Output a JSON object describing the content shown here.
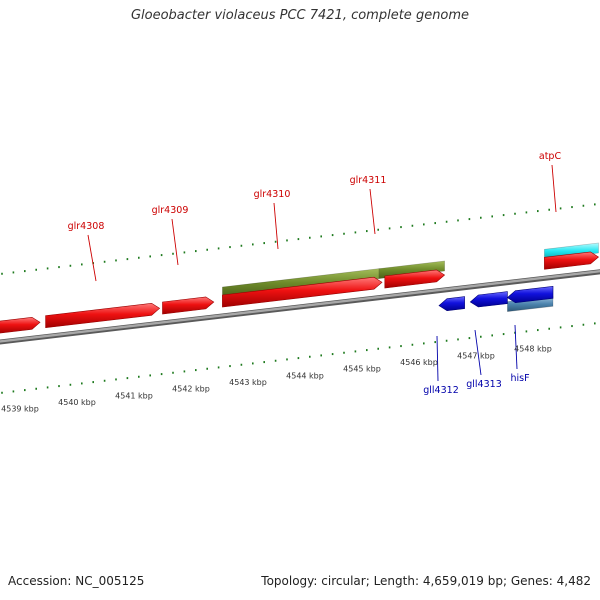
{
  "title": "Gloeobacter violaceus PCC 7421, complete genome",
  "footer": {
    "accession_label": "Accession:",
    "accession": "NC_005125",
    "topology_label": "Topology:",
    "topology": "circular",
    "length_label": "Length:",
    "length": "4,659,019 bp",
    "genes_label": "Genes:",
    "genes": "4,482"
  },
  "colors": {
    "forward_gene": "#ee1111",
    "reverse_gene": "#1111dd",
    "forward_label": "#cc0000",
    "reverse_label": "#0000aa",
    "highlight_green": "#6e8b2a",
    "highlight_cyan": "#22e6f0",
    "highlight_steel": "#4d84ae",
    "backbone": "#8a8a8a",
    "tick": "#1e7a1e"
  },
  "scale": {
    "unit": "kbp",
    "kbp_ticks": [
      {
        "kbp": 4539,
        "label": "4539 kbp"
      },
      {
        "kbp": 4540,
        "label": "4540 kbp"
      },
      {
        "kbp": 4541,
        "label": "4541 kbp"
      },
      {
        "kbp": 4542,
        "label": "4542 kbp"
      },
      {
        "kbp": 4543,
        "label": "4543 kbp"
      },
      {
        "kbp": 4544,
        "label": "4544 kbp"
      },
      {
        "kbp": 4545,
        "label": "4545 kbp"
      },
      {
        "kbp": 4546,
        "label": "4546 kbp"
      },
      {
        "kbp": 4547,
        "label": "4547 kbp"
      },
      {
        "kbp": 4548,
        "label": "4548 kbp"
      }
    ]
  },
  "genes": [
    {
      "id": "g-left",
      "name": "",
      "strand": "+",
      "start_kbp": 4538.55,
      "end_kbp": 4539.35
    },
    {
      "id": "glr4308",
      "name": "glr4308",
      "strand": "+",
      "start_kbp": 4539.45,
      "end_kbp": 4541.45
    },
    {
      "id": "glr4309",
      "name": "glr4309",
      "strand": "+",
      "start_kbp": 4541.5,
      "end_kbp": 4542.4
    },
    {
      "id": "glr4310",
      "name": "glr4310",
      "strand": "+",
      "start_kbp": 4542.55,
      "end_kbp": 4545.35
    },
    {
      "id": "glr4311",
      "name": "glr4311",
      "strand": "+",
      "start_kbp": 4545.4,
      "end_kbp": 4546.45
    },
    {
      "id": "atpC",
      "name": "atpC",
      "strand": "+",
      "start_kbp": 4548.2,
      "end_kbp": 4549.15
    },
    {
      "id": "gll4312",
      "name": "gll4312",
      "strand": "-",
      "start_kbp": 4546.35,
      "end_kbp": 4546.8
    },
    {
      "id": "gll4313",
      "name": "gll4313",
      "strand": "-",
      "start_kbp": 4546.9,
      "end_kbp": 4547.55
    },
    {
      "id": "hisF",
      "name": "hisF",
      "strand": "-",
      "start_kbp": 4547.55,
      "end_kbp": 4548.35
    },
    {
      "id": "g-right",
      "name": "",
      "strand": "-",
      "start_kbp": 4549.8,
      "end_kbp": 4550.2
    }
  ],
  "highlights": [
    {
      "id": "hl-green-1",
      "strand": "+",
      "color_key": "highlight_green",
      "start_kbp": 4542.55,
      "end_kbp": 4545.3
    },
    {
      "id": "hl-green-2",
      "strand": "+",
      "color_key": "highlight_green",
      "start_kbp": 4545.3,
      "end_kbp": 4546.45
    },
    {
      "id": "hl-cyan",
      "strand": "+",
      "color_key": "highlight_cyan",
      "start_kbp": 4548.2,
      "end_kbp": 4549.15
    },
    {
      "id": "hl-steel",
      "strand": "-",
      "color_key": "highlight_steel",
      "start_kbp": 4547.55,
      "end_kbp": 4548.35
    }
  ]
}
